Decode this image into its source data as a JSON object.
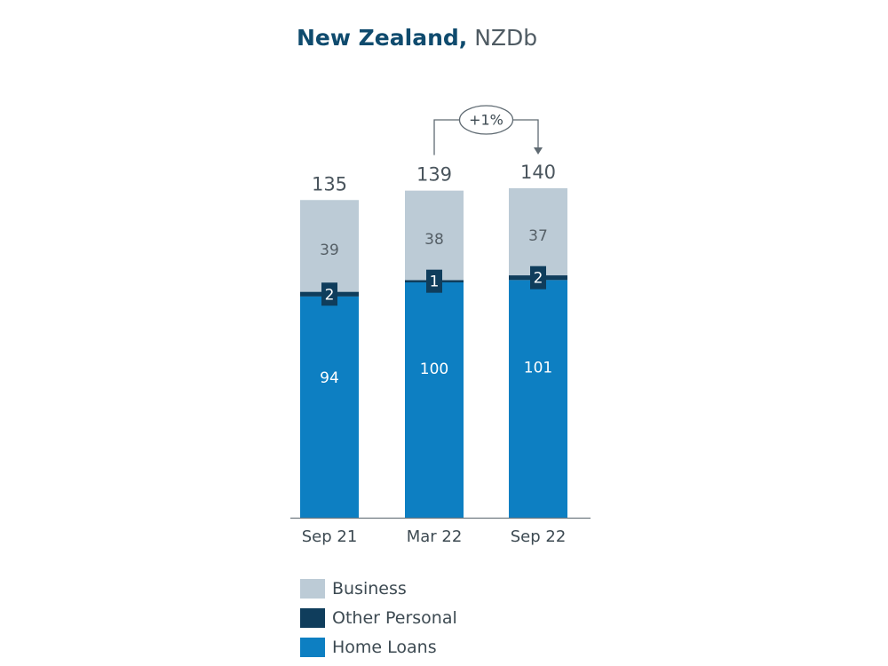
{
  "title": {
    "main": "New Zealand,",
    "unit": "NZDb"
  },
  "chart_data": {
    "type": "bar",
    "stacked": true,
    "categories": [
      "Sep 21",
      "Mar 22",
      "Sep 22"
    ],
    "series": [
      {
        "name": "Home Loans",
        "values": [
          94,
          100,
          101
        ],
        "color": "#0d7fc2"
      },
      {
        "name": "Other Personal",
        "values": [
          2,
          1,
          2
        ],
        "color": "#0f3d5c"
      },
      {
        "name": "Business",
        "values": [
          39,
          38,
          37
        ],
        "color": "#bccbd6"
      }
    ],
    "totals": [
      135,
      139,
      140
    ],
    "annotation": {
      "text": "+1%",
      "from": "Mar 22",
      "to": "Sep 22"
    },
    "legend_position": "bottom"
  }
}
